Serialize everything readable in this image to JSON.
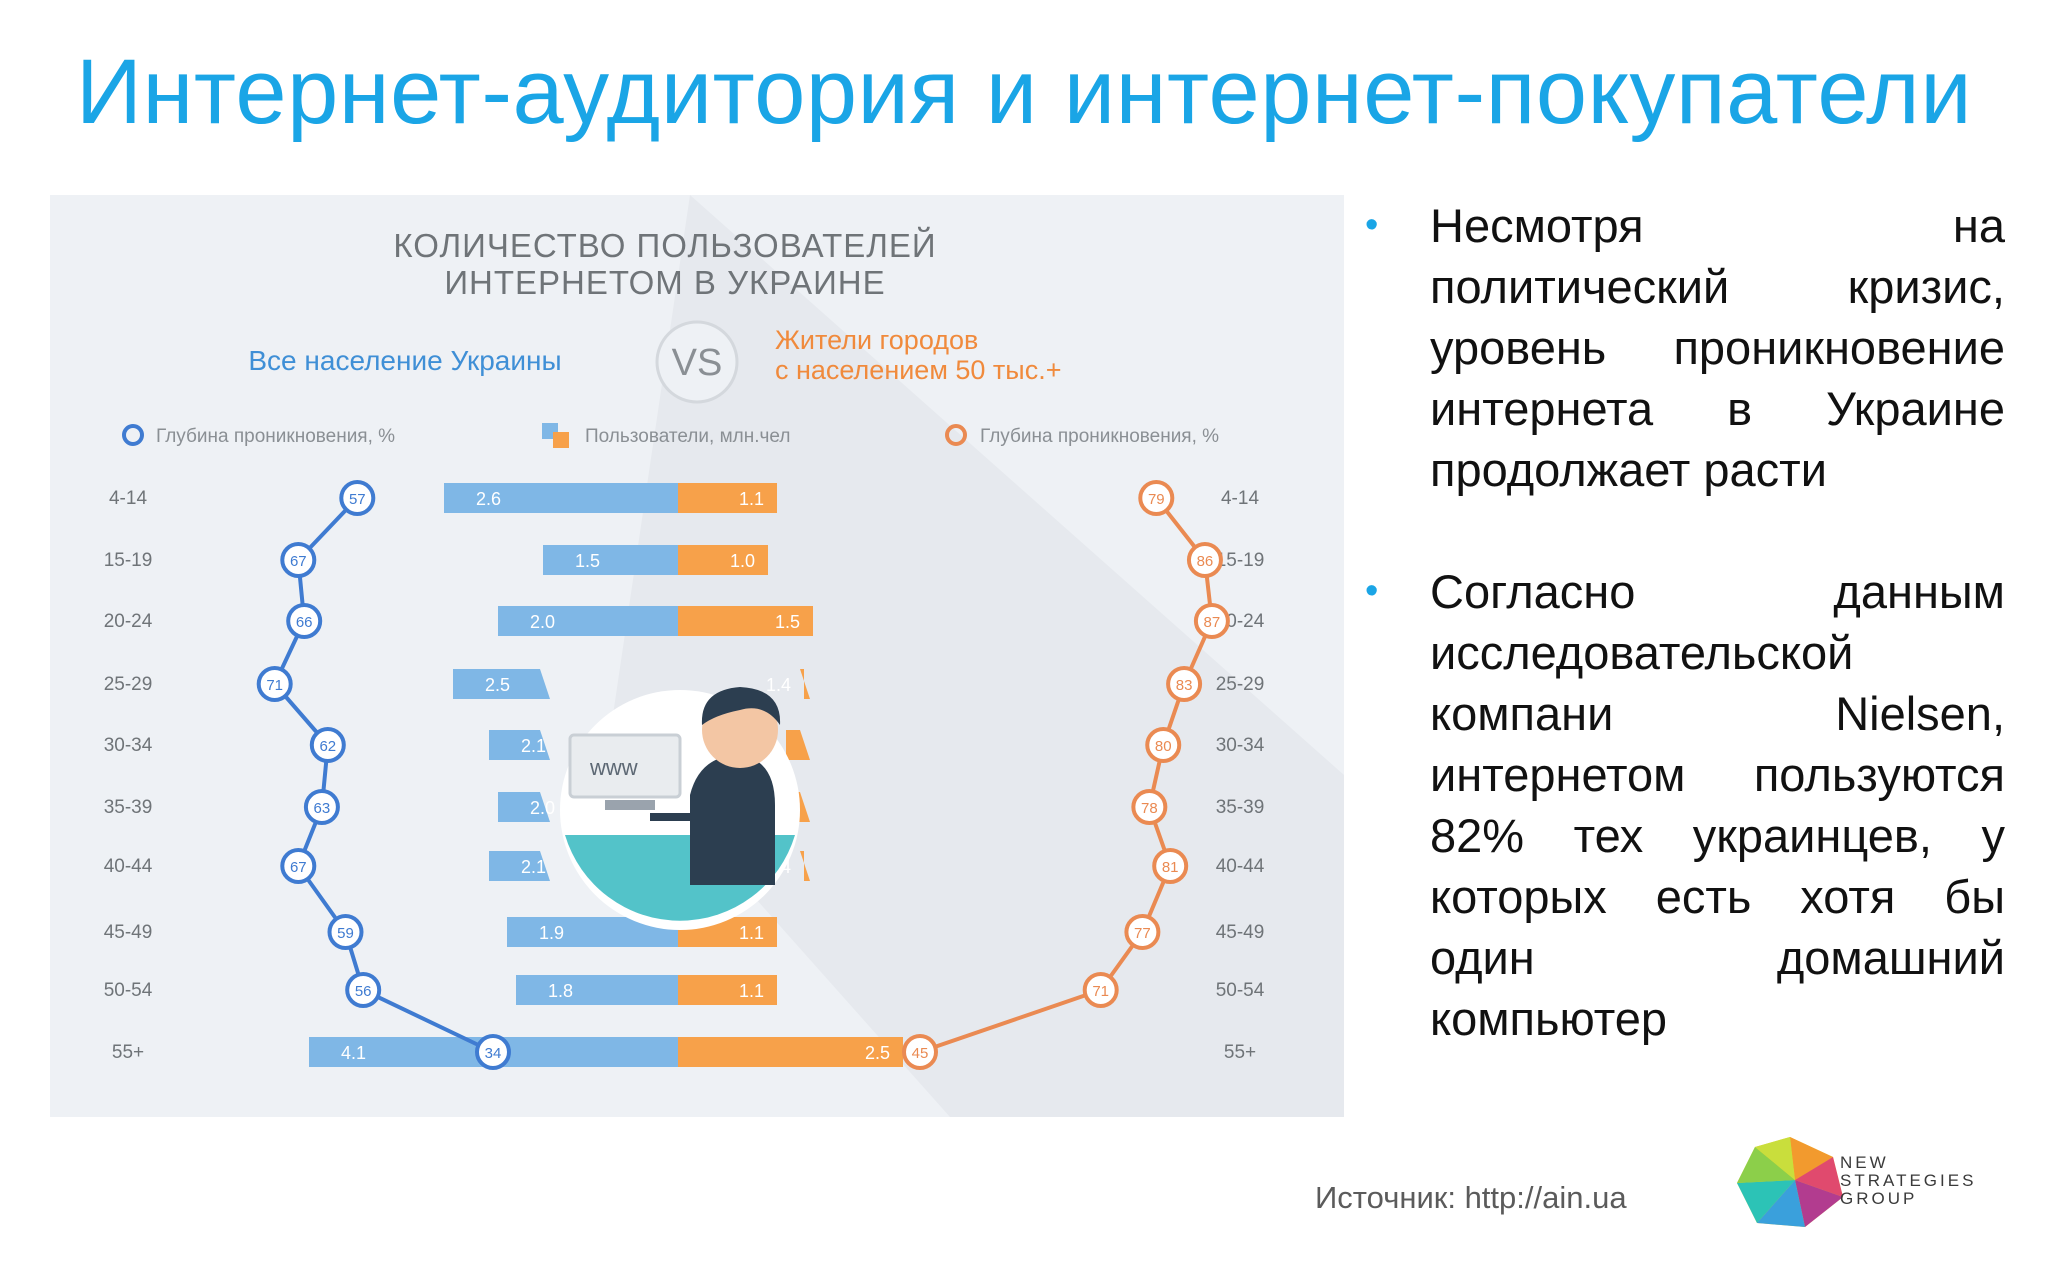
{
  "slide": {
    "title": "Интернет-аудитория и интернет-покупатели",
    "bullets": [
      "Несмотря на политический кризис, уровень проникновение интернета в Украине продолжает расти",
      "Согласно данным исследовательской компани Nielsen, интернетом пользуются 82% тех украинцев, у которых есть хотя бы один домашний компьютер"
    ],
    "source": "Источник: http://ain.ua",
    "logo_lines": [
      "NEW",
      "STRATEGIES",
      "GROUP"
    ]
  },
  "colors": {
    "title": "#1aa5e6",
    "blue": "#7fb7e6",
    "blue_line": "#3f7bd1",
    "orange": "#f7a14a",
    "orange_line": "#ea8a52",
    "panel_bg": "#eef1f5"
  },
  "icons": {
    "illustration": "person-at-computer-icon",
    "logo": "polyhedron-logo-icon"
  },
  "chart_data": {
    "type": "bar",
    "title": "КОЛИЧЕСТВО ПОЛЬЗОВАТЕЛЕЙ ИНТЕРНЕТОМ В УКРАИНЕ",
    "left_group": "Все население Украины",
    "vs_label": "VS",
    "right_group": "Жители городов с населением 50 тыс.+",
    "legend": [
      "Глубина проникновения, %",
      "Пользователи, млн.чел",
      "Глубина проникновения, %"
    ],
    "categories": [
      "4-14",
      "15-19",
      "20-24",
      "25-29",
      "30-34",
      "35-39",
      "40-44",
      "45-49",
      "50-54",
      "55+"
    ],
    "series": [
      {
        "values": [
          2.6,
          1.5,
          2.0,
          2.5,
          2.1,
          2.0,
          2.1,
          1.9,
          1.8,
          4.1
        ]
      },
      {
        "values": [
          1.1,
          1.0,
          1.5,
          1.4,
          1.2,
          1.1,
          1.4,
          1.1,
          1.1,
          2.5
        ]
      },
      {
        "values": [
          57,
          67,
          66,
          71,
          62,
          63,
          67,
          59,
          56,
          34
        ]
      },
      {
        "values": [
          79,
          86,
          87,
          83,
          80,
          78,
          81,
          77,
          71,
          45
        ]
      }
    ],
    "illustration_text": "www"
  }
}
